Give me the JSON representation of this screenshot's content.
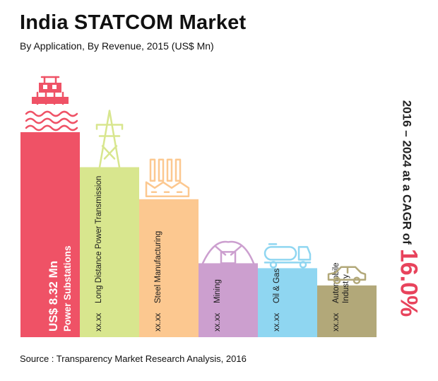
{
  "header": {
    "title": "India STATCOM Market",
    "subtitle": "By Application, By Revenue, 2015 (US$ Mn)"
  },
  "footer": {
    "source": "Source : Transparency Market Research Analysis, 2016"
  },
  "cagr": {
    "text": "2016 – 2024 at a CAGR of",
    "value": "16.0%"
  },
  "chart_data": {
    "type": "bar",
    "categories": [
      "Power Substations",
      "Long Distance Power Transmission",
      "Steel Manufacturing",
      "Mining",
      "Oil & Gas",
      "Automobile Industry"
    ],
    "values": [
      8.32,
      6.9,
      5.6,
      3.0,
      2.8,
      2.1
    ],
    "value_labels": [
      "US$ 8.32 Mn",
      "xx.xx",
      "xx.xx",
      "xx.xx",
      "xx.xx",
      "xx.xx"
    ],
    "colors": [
      "#ef5266",
      "#d8e68e",
      "#fcc890",
      "#cc9fcf",
      "#8fd6f1",
      "#b2a879"
    ],
    "icons": [
      "substation-icon",
      "transmission-tower-icon",
      "factory-icon",
      "mining-icon",
      "tanker-truck-icon",
      "car-icon"
    ]
  }
}
